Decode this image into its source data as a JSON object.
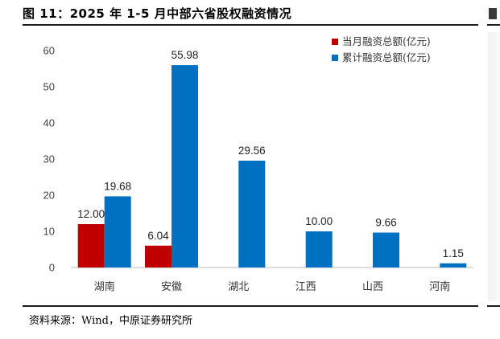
{
  "title": "图 11：2025 年 1-5 月中部六省股权融资情况",
  "source": "资料来源：Wind，中原证券研究所",
  "chart_data": {
    "type": "bar",
    "title": "",
    "xlabel": "",
    "ylabel": "",
    "ylim": [
      0,
      60
    ],
    "yticks": [
      0,
      10,
      20,
      30,
      40,
      50,
      60
    ],
    "grid": false,
    "legend_position": "top-right",
    "categories": [
      "湖南",
      "安徽",
      "湖北",
      "江西",
      "山西",
      "河南"
    ],
    "series": [
      {
        "name": "当月融资总额(亿元)",
        "color": "#c00000",
        "values": [
          12.0,
          6.04,
          null,
          null,
          null,
          null
        ],
        "labels": [
          "12.00",
          "6.04",
          null,
          null,
          null,
          null
        ]
      },
      {
        "name": "累计融资总额(亿元)",
        "color": "#0070c0",
        "values": [
          19.68,
          55.98,
          29.56,
          10.0,
          9.66,
          1.15
        ],
        "labels": [
          "19.68",
          "55.98",
          "29.56",
          "10.00",
          "9.66",
          "1.15"
        ]
      }
    ]
  }
}
